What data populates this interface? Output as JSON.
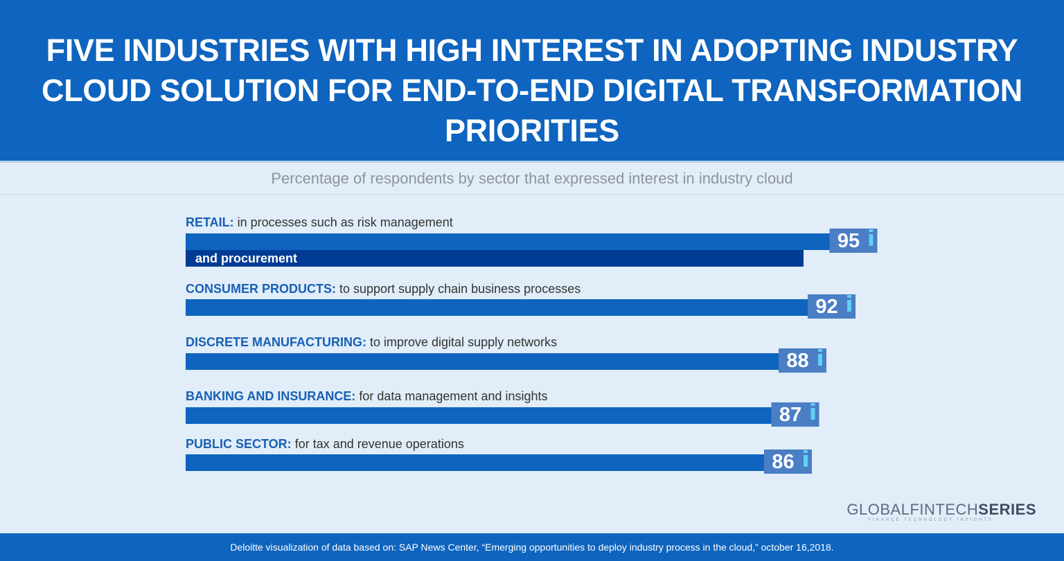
{
  "header": {
    "title": "Five Industries With High Interest In Adopting Industry Cloud Solution For End-To-End Digital Transformation Priorities"
  },
  "colors": {
    "header_bg": "#0e64be",
    "page_bg": "#e1edf8",
    "bar": "#0e64be",
    "bar_dark": "#003c93",
    "value_box": "#4a7ec5",
    "value_box_accent": "#5fd0f2",
    "category_text": "#1760b4"
  },
  "chart_data": {
    "type": "bar",
    "orientation": "horizontal",
    "subtitle": "Percentage of respondents by sector that expressed interest in industry cloud",
    "categories": [
      "RETAIL:",
      "CONSUMER PRODUCTS:",
      "DISCRETE MANUFACTURING:",
      "BANKING AND INSURANCE:",
      "PUBLIC SECTOR:"
    ],
    "descriptions": [
      "in processes such as risk management",
      "to support supply chain business processes",
      "to improve digital supply networks",
      "for data management and insights",
      "for tax and revenue operations"
    ],
    "description_continuation": [
      "and procurement",
      "",
      "",
      "",
      ""
    ],
    "values": [
      95,
      92,
      88,
      87,
      86
    ],
    "value_labels": [
      "95",
      "92",
      "88",
      "87",
      "86"
    ],
    "xlim": [
      0,
      100
    ],
    "grid": false,
    "legend": "none"
  },
  "branding": {
    "logo_regular": "GLOBALFINTECH",
    "logo_bold": "SERIES",
    "logo_tagline": "FINANCE TECHNOLOGY INSIGHTS"
  },
  "footer": {
    "source": "Deloitte visualization of data based on: SAP News Center, “Emerging opportunities to deploy industry process in the cloud,” october 16,2018."
  }
}
